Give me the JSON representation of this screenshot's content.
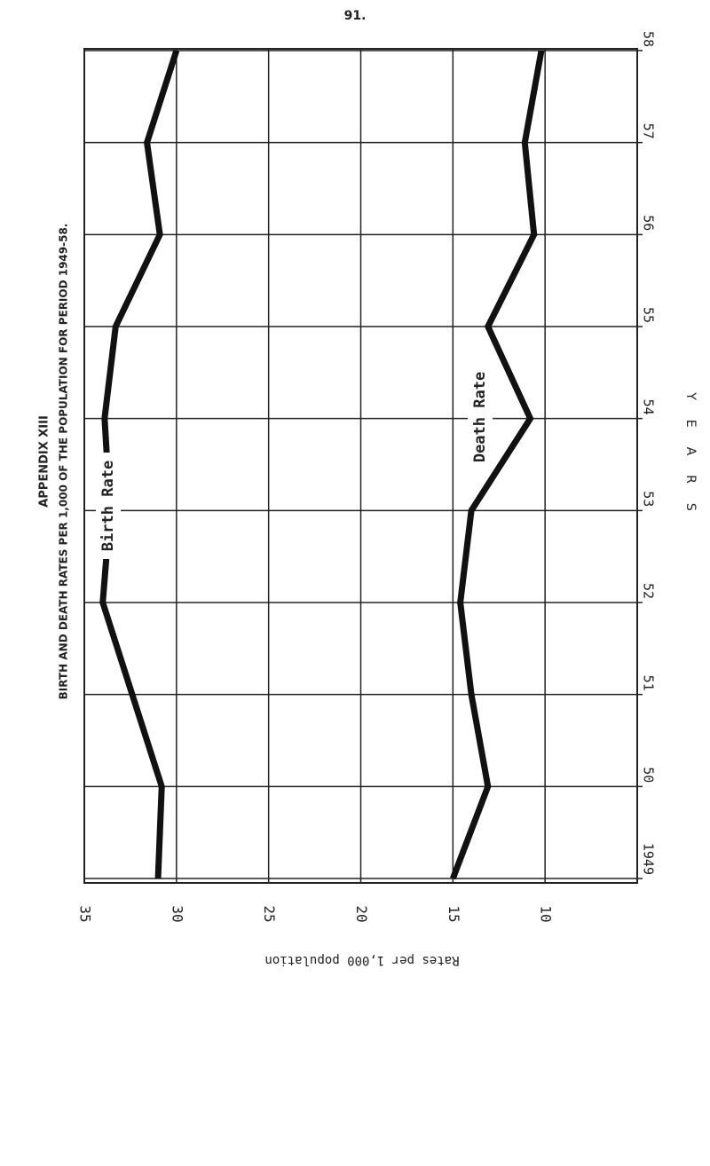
{
  "page_number": "91.",
  "appendix": "APPENDIX XIII",
  "chart_data": {
    "type": "line",
    "title": "BIRTH AND DEATH RATES PER 1,000 OF THE POPULATION FOR PERIOD 1949-58.",
    "x_label": "YEARS",
    "y_label": "Rates per 1,000 population",
    "categories": [
      "1949",
      "50",
      "51",
      "52",
      "53",
      "54",
      "55",
      "56",
      "57",
      "58"
    ],
    "series": [
      {
        "name": "Birth Rate",
        "color": "#111111",
        "values": [
          31.0,
          30.8,
          32.4,
          34.0,
          33.6,
          33.9,
          33.3,
          30.9,
          31.6,
          30.0
        ]
      },
      {
        "name": "Death Rate",
        "color": "#111111",
        "values": [
          15.0,
          13.1,
          14.0,
          14.6,
          14.0,
          10.8,
          13.1,
          10.6,
          11.1,
          10.2
        ]
      }
    ],
    "ylim": [
      35,
      5
    ],
    "yticks": [
      35,
      30,
      25,
      20,
      15,
      10
    ],
    "grid": true
  }
}
